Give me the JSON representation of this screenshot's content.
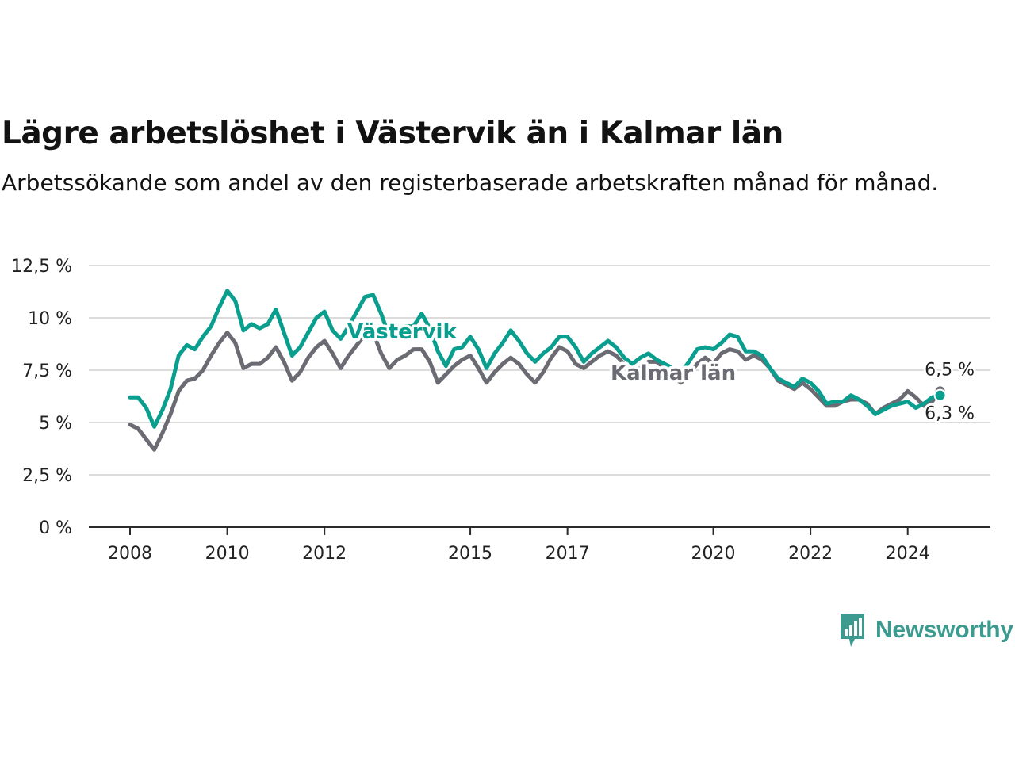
{
  "header": {
    "title": "Lägre arbetslöshet i Västervik än i Kalmar län",
    "subtitle": "Arbetssökande som andel av den registerbaserade arbetskraften månad för månad."
  },
  "brand": {
    "name": "Newsworthy",
    "icon": "newsworthy-logo-icon",
    "color": "#3c9a8f"
  },
  "chart_data": {
    "type": "line",
    "title": "Lägre arbetslöshet i Västervik än i Kalmar län",
    "subtitle": "Arbetssökande som andel av den registerbaserade arbetskraften månad för månad.",
    "xlabel": "",
    "ylabel": "",
    "x_ticks": [
      "2008",
      "2010",
      "2012",
      "2015",
      "2017",
      "2020",
      "2022",
      "2024"
    ],
    "y_ticks": [
      "0 %",
      "2,5 %",
      "5 %",
      "7,5 %",
      "10 %",
      "12,5 %"
    ],
    "ylim": [
      0,
      12.5
    ],
    "xlim": [
      "2008-01",
      "2025-01"
    ],
    "grid": true,
    "legend": "inline labels",
    "series": [
      {
        "name": "Västervik",
        "color": "#0a9e8f",
        "end_label": "6,3 %",
        "points": [
          [
            "2008-01",
            6.2
          ],
          [
            "2008-03",
            6.2
          ],
          [
            "2008-05",
            5.7
          ],
          [
            "2008-07",
            4.8
          ],
          [
            "2008-09",
            5.6
          ],
          [
            "2008-11",
            6.6
          ],
          [
            "2009-01",
            8.2
          ],
          [
            "2009-03",
            8.7
          ],
          [
            "2009-05",
            8.5
          ],
          [
            "2009-07",
            9.1
          ],
          [
            "2009-09",
            9.6
          ],
          [
            "2009-11",
            10.5
          ],
          [
            "2010-01",
            11.3
          ],
          [
            "2010-03",
            10.8
          ],
          [
            "2010-05",
            9.4
          ],
          [
            "2010-07",
            9.7
          ],
          [
            "2010-09",
            9.5
          ],
          [
            "2010-11",
            9.7
          ],
          [
            "2011-01",
            10.4
          ],
          [
            "2011-03",
            9.3
          ],
          [
            "2011-05",
            8.2
          ],
          [
            "2011-07",
            8.6
          ],
          [
            "2011-09",
            9.3
          ],
          [
            "2011-11",
            10.0
          ],
          [
            "2012-01",
            10.3
          ],
          [
            "2012-03",
            9.4
          ],
          [
            "2012-05",
            9.0
          ],
          [
            "2012-07",
            9.6
          ],
          [
            "2012-09",
            10.3
          ],
          [
            "2012-11",
            11.0
          ],
          [
            "2013-01",
            11.1
          ],
          [
            "2013-03",
            10.2
          ],
          [
            "2013-05",
            9.1
          ],
          [
            "2013-07",
            9.5
          ],
          [
            "2013-09",
            9.6
          ],
          [
            "2013-11",
            9.6
          ],
          [
            "2014-01",
            10.2
          ],
          [
            "2014-03",
            9.5
          ],
          [
            "2014-05",
            8.4
          ],
          [
            "2014-07",
            7.7
          ],
          [
            "2014-09",
            8.5
          ],
          [
            "2014-11",
            8.6
          ],
          [
            "2015-01",
            9.1
          ],
          [
            "2015-03",
            8.5
          ],
          [
            "2015-05",
            7.6
          ],
          [
            "2015-07",
            8.3
          ],
          [
            "2015-09",
            8.8
          ],
          [
            "2015-11",
            9.4
          ],
          [
            "2016-01",
            8.9
          ],
          [
            "2016-03",
            8.3
          ],
          [
            "2016-05",
            7.9
          ],
          [
            "2016-07",
            8.3
          ],
          [
            "2016-09",
            8.6
          ],
          [
            "2016-11",
            9.1
          ],
          [
            "2017-01",
            9.1
          ],
          [
            "2017-03",
            8.6
          ],
          [
            "2017-05",
            7.9
          ],
          [
            "2017-07",
            8.3
          ],
          [
            "2017-09",
            8.6
          ],
          [
            "2017-11",
            8.9
          ],
          [
            "2018-01",
            8.6
          ],
          [
            "2018-03",
            8.1
          ],
          [
            "2018-05",
            7.8
          ],
          [
            "2018-07",
            8.1
          ],
          [
            "2018-09",
            8.3
          ],
          [
            "2018-11",
            8.0
          ],
          [
            "2019-01",
            7.8
          ],
          [
            "2019-03",
            7.6
          ],
          [
            "2019-05",
            7.4
          ],
          [
            "2019-07",
            7.9
          ],
          [
            "2019-09",
            8.5
          ],
          [
            "2019-11",
            8.6
          ],
          [
            "2020-01",
            8.5
          ],
          [
            "2020-03",
            8.8
          ],
          [
            "2020-05",
            9.2
          ],
          [
            "2020-07",
            9.1
          ],
          [
            "2020-09",
            8.4
          ],
          [
            "2020-11",
            8.4
          ],
          [
            "2021-01",
            8.2
          ],
          [
            "2021-03",
            7.6
          ],
          [
            "2021-05",
            7.1
          ],
          [
            "2021-07",
            6.9
          ],
          [
            "2021-09",
            6.7
          ],
          [
            "2021-11",
            7.1
          ],
          [
            "2022-01",
            6.9
          ],
          [
            "2022-03",
            6.5
          ],
          [
            "2022-05",
            5.9
          ],
          [
            "2022-07",
            6.0
          ],
          [
            "2022-09",
            6.0
          ],
          [
            "2022-11",
            6.3
          ],
          [
            "2023-01",
            6.1
          ],
          [
            "2023-03",
            5.8
          ],
          [
            "2023-05",
            5.4
          ],
          [
            "2023-07",
            5.6
          ],
          [
            "2023-09",
            5.8
          ],
          [
            "2023-11",
            5.9
          ],
          [
            "2024-01",
            6.0
          ],
          [
            "2024-03",
            5.7
          ],
          [
            "2024-05",
            5.9
          ],
          [
            "2024-07",
            6.2
          ],
          [
            "2024-09",
            6.3
          ]
        ]
      },
      {
        "name": "Kalmar län",
        "color": "#6b6b73",
        "end_label": "6,5 %",
        "points": [
          [
            "2008-01",
            4.9
          ],
          [
            "2008-03",
            4.7
          ],
          [
            "2008-05",
            4.2
          ],
          [
            "2008-07",
            3.7
          ],
          [
            "2008-09",
            4.5
          ],
          [
            "2008-11",
            5.4
          ],
          [
            "2009-01",
            6.5
          ],
          [
            "2009-03",
            7.0
          ],
          [
            "2009-05",
            7.1
          ],
          [
            "2009-07",
            7.5
          ],
          [
            "2009-09",
            8.2
          ],
          [
            "2009-11",
            8.8
          ],
          [
            "2010-01",
            9.3
          ],
          [
            "2010-03",
            8.8
          ],
          [
            "2010-05",
            7.6
          ],
          [
            "2010-07",
            7.8
          ],
          [
            "2010-09",
            7.8
          ],
          [
            "2010-11",
            8.1
          ],
          [
            "2011-01",
            8.6
          ],
          [
            "2011-03",
            7.9
          ],
          [
            "2011-05",
            7.0
          ],
          [
            "2011-07",
            7.4
          ],
          [
            "2011-09",
            8.1
          ],
          [
            "2011-11",
            8.6
          ],
          [
            "2012-01",
            8.9
          ],
          [
            "2012-03",
            8.3
          ],
          [
            "2012-05",
            7.6
          ],
          [
            "2012-07",
            8.2
          ],
          [
            "2012-09",
            8.7
          ],
          [
            "2012-11",
            9.2
          ],
          [
            "2013-01",
            9.3
          ],
          [
            "2013-03",
            8.3
          ],
          [
            "2013-05",
            7.6
          ],
          [
            "2013-07",
            8.0
          ],
          [
            "2013-09",
            8.2
          ],
          [
            "2013-11",
            8.5
          ],
          [
            "2014-01",
            8.5
          ],
          [
            "2014-03",
            7.9
          ],
          [
            "2014-05",
            6.9
          ],
          [
            "2014-07",
            7.3
          ],
          [
            "2014-09",
            7.7
          ],
          [
            "2014-11",
            8.0
          ],
          [
            "2015-01",
            8.2
          ],
          [
            "2015-03",
            7.6
          ],
          [
            "2015-05",
            6.9
          ],
          [
            "2015-07",
            7.4
          ],
          [
            "2015-09",
            7.8
          ],
          [
            "2015-11",
            8.1
          ],
          [
            "2016-01",
            7.8
          ],
          [
            "2016-03",
            7.3
          ],
          [
            "2016-05",
            6.9
          ],
          [
            "2016-07",
            7.4
          ],
          [
            "2016-09",
            8.1
          ],
          [
            "2016-11",
            8.6
          ],
          [
            "2017-01",
            8.4
          ],
          [
            "2017-03",
            7.8
          ],
          [
            "2017-05",
            7.6
          ],
          [
            "2017-07",
            7.9
          ],
          [
            "2017-09",
            8.2
          ],
          [
            "2017-11",
            8.4
          ],
          [
            "2018-01",
            8.2
          ],
          [
            "2018-03",
            7.8
          ],
          [
            "2018-05",
            7.4
          ],
          [
            "2018-07",
            7.6
          ],
          [
            "2018-09",
            7.9
          ],
          [
            "2018-11",
            7.9
          ],
          [
            "2019-01",
            7.6
          ],
          [
            "2019-03",
            7.2
          ],
          [
            "2019-05",
            6.9
          ],
          [
            "2019-07",
            7.3
          ],
          [
            "2019-09",
            7.8
          ],
          [
            "2019-11",
            8.1
          ],
          [
            "2020-01",
            7.8
          ],
          [
            "2020-03",
            8.3
          ],
          [
            "2020-05",
            8.5
          ],
          [
            "2020-07",
            8.4
          ],
          [
            "2020-09",
            8.0
          ],
          [
            "2020-11",
            8.2
          ],
          [
            "2021-01",
            8.0
          ],
          [
            "2021-03",
            7.6
          ],
          [
            "2021-05",
            7.0
          ],
          [
            "2021-07",
            6.8
          ],
          [
            "2021-09",
            6.6
          ],
          [
            "2021-11",
            6.9
          ],
          [
            "2022-01",
            6.6
          ],
          [
            "2022-03",
            6.2
          ],
          [
            "2022-05",
            5.8
          ],
          [
            "2022-07",
            5.8
          ],
          [
            "2022-09",
            6.0
          ],
          [
            "2022-11",
            6.1
          ],
          [
            "2023-01",
            6.1
          ],
          [
            "2023-03",
            5.9
          ],
          [
            "2023-05",
            5.4
          ],
          [
            "2023-07",
            5.7
          ],
          [
            "2023-09",
            5.9
          ],
          [
            "2023-11",
            6.1
          ],
          [
            "2024-01",
            6.5
          ],
          [
            "2024-03",
            6.2
          ],
          [
            "2024-05",
            5.8
          ],
          [
            "2024-07",
            6.0
          ],
          [
            "2024-09",
            6.5
          ]
        ]
      }
    ]
  }
}
